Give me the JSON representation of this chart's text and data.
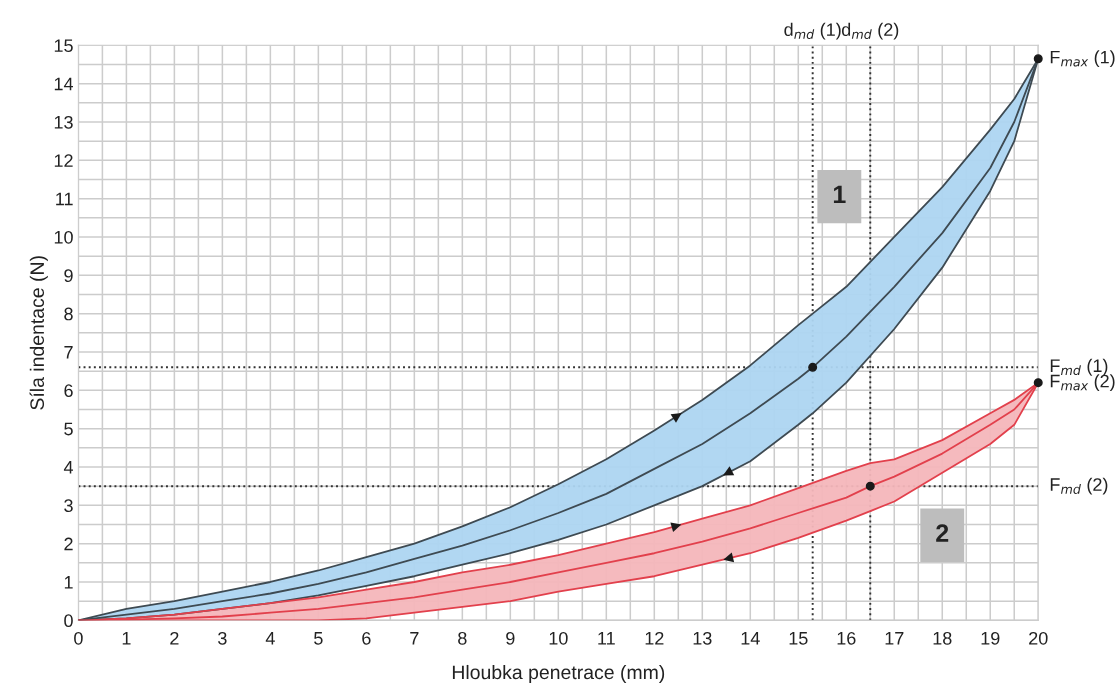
{
  "chart_data": {
    "type": "line",
    "xlabel": "Hloubka penetrace (mm)",
    "ylabel": "Síla indentace (N)",
    "xlim": [
      0,
      20
    ],
    "ylim": [
      0,
      15
    ],
    "xticks": [
      0,
      1,
      2,
      3,
      4,
      5,
      6,
      7,
      8,
      9,
      10,
      11,
      12,
      13,
      14,
      15,
      16,
      17,
      18,
      19,
      20
    ],
    "yticks": [
      0,
      1,
      2,
      3,
      4,
      5,
      6,
      7,
      8,
      9,
      10,
      11,
      12,
      13,
      14,
      15
    ],
    "grid": true,
    "legend": false,
    "marker": "none",
    "line_style": "solid",
    "series": [
      {
        "color": "#3e4a52",
        "x": [
          0,
          1,
          2,
          3,
          4,
          5,
          6,
          7,
          8,
          9,
          10,
          11,
          12,
          13,
          14,
          15,
          15.3,
          16,
          17,
          18,
          19,
          19.5,
          20
        ],
        "values": [
          0,
          0.15,
          0.3,
          0.5,
          0.7,
          0.95,
          1.25,
          1.6,
          1.95,
          2.35,
          2.8,
          3.3,
          3.95,
          4.6,
          5.4,
          6.3,
          6.6,
          7.4,
          8.7,
          10.1,
          11.8,
          13.0,
          14.65
        ],
        "upper": [
          0,
          0.3,
          0.5,
          0.75,
          1.0,
          1.3,
          1.65,
          2.0,
          2.45,
          2.95,
          3.55,
          4.2,
          4.95,
          5.75,
          6.65,
          7.7,
          8.0,
          8.7,
          10.0,
          11.3,
          12.8,
          13.6,
          14.65
        ],
        "lower": [
          0,
          0.05,
          0.15,
          0.3,
          0.45,
          0.65,
          0.9,
          1.15,
          1.45,
          1.75,
          2.1,
          2.5,
          3.0,
          3.5,
          4.15,
          5.1,
          5.4,
          6.2,
          7.6,
          9.2,
          11.2,
          12.5,
          14.65
        ]
      },
      {
        "color": "#e2404c",
        "x": [
          0,
          1,
          2,
          3,
          4,
          5,
          6,
          7,
          8,
          9,
          10,
          11,
          12,
          13,
          14,
          15,
          16,
          16.5,
          17,
          18,
          19,
          19.5,
          20
        ],
        "values": [
          0,
          0.02,
          0.05,
          0.1,
          0.2,
          0.3,
          0.45,
          0.6,
          0.8,
          1.0,
          1.25,
          1.5,
          1.75,
          2.05,
          2.4,
          2.8,
          3.2,
          3.5,
          3.75,
          4.35,
          5.1,
          5.5,
          6.2
        ],
        "upper": [
          0,
          0.05,
          0.15,
          0.3,
          0.45,
          0.6,
          0.8,
          1.0,
          1.25,
          1.45,
          1.7,
          2.0,
          2.3,
          2.65,
          3.0,
          3.45,
          3.9,
          4.1,
          4.2,
          4.7,
          5.4,
          5.75,
          6.2
        ],
        "lower": [
          0,
          0,
          0,
          0,
          0,
          0,
          0.05,
          0.2,
          0.35,
          0.5,
          0.75,
          0.95,
          1.15,
          1.45,
          1.75,
          2.15,
          2.6,
          2.85,
          3.1,
          3.85,
          4.6,
          5.1,
          6.2
        ]
      },
      {
        "type": "scatter",
        "color": "#1a1a1a",
        "marker": "circle",
        "x": [
          20,
          20,
          15.3,
          16.5
        ],
        "values": [
          14.65,
          6.2,
          6.6,
          3.5
        ]
      }
    ],
    "ref_lines": [
      {
        "axis": "x",
        "value": 15.3,
        "label": "d$_{md}$ (1)",
        "color": "#333333",
        "line_style": "dotted"
      },
      {
        "axis": "x",
        "value": 16.5,
        "label": "d$_{md}$ (2)",
        "color": "#333333",
        "line_style": "dotted"
      },
      {
        "axis": "y",
        "value": 6.6,
        "label": "F$_{md}$ (1)",
        "color": "#333333",
        "line_style": "dotted"
      },
      {
        "axis": "y",
        "value": 3.5,
        "label": "F$_{md}$ (2)",
        "color": "#333333",
        "line_style": "dotted"
      }
    ],
    "annotations": [
      {
        "text": "F$_{max}$ (1)",
        "x": 20,
        "y": 14.65
      },
      {
        "text": "F$_{max}$ (2)",
        "x": 20,
        "y": 6.2
      },
      "1",
      "2"
    ]
  }
}
